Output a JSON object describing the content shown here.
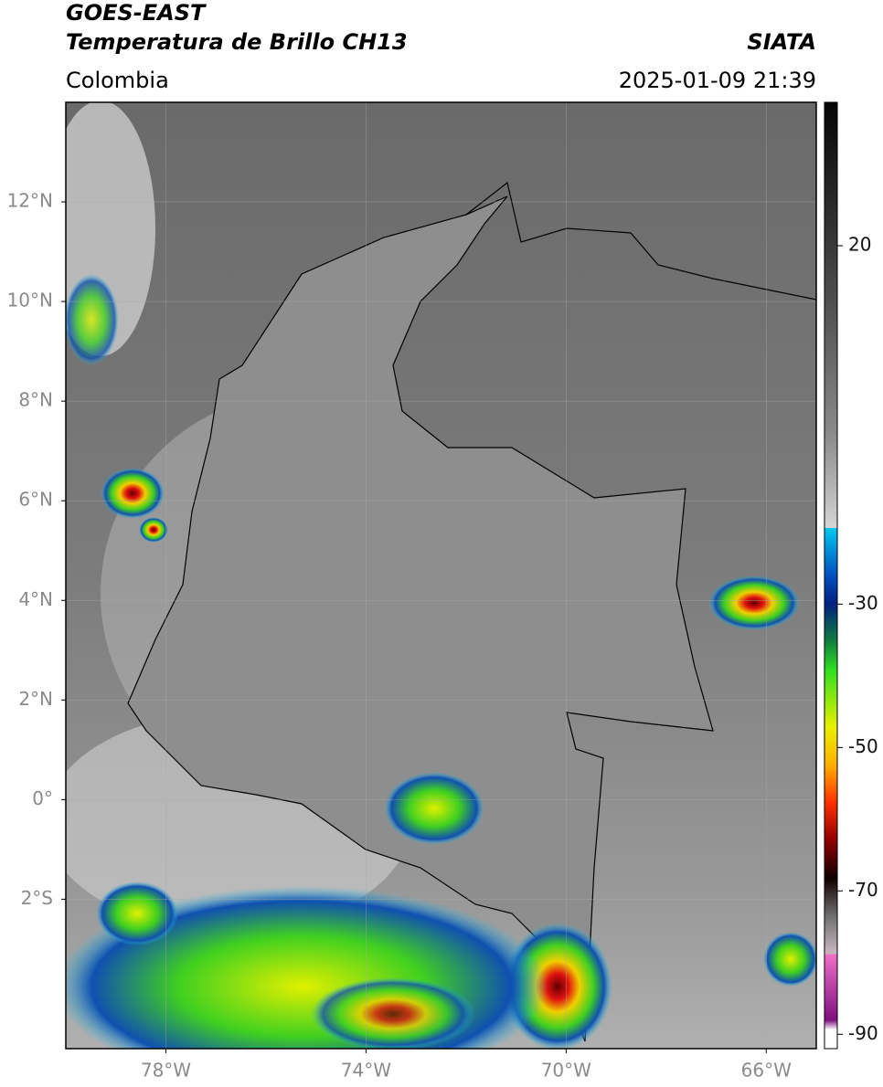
{
  "map": {
    "satellite": "GOES-EAST",
    "title": "Temperatura de Brillo CH13",
    "source": "SIATA",
    "region": "Colombia",
    "timestamp": "2025-01-09 21:39",
    "xlim": [
      -80,
      -65
    ],
    "ylim": [
      -5,
      14
    ],
    "xticks": [
      {
        "value": -78,
        "label": "78°W"
      },
      {
        "value": -74,
        "label": "74°W"
      },
      {
        "value": -70,
        "label": "70°W"
      },
      {
        "value": -66,
        "label": "66°W"
      }
    ],
    "yticks": [
      {
        "value": 12,
        "label": "12°N"
      },
      {
        "value": 10,
        "label": "10°N"
      },
      {
        "value": 8,
        "label": "8°N"
      },
      {
        "value": 6,
        "label": "6°N"
      },
      {
        "value": 4,
        "label": "4°N"
      },
      {
        "value": 2,
        "label": "2°N"
      },
      {
        "value": 0,
        "label": "0°"
      },
      {
        "value": -2,
        "label": "2°S"
      }
    ],
    "colorbar": {
      "lim": [
        -92,
        40
      ],
      "ticks": [
        20,
        -30,
        -50,
        -70,
        -90
      ]
    }
  }
}
